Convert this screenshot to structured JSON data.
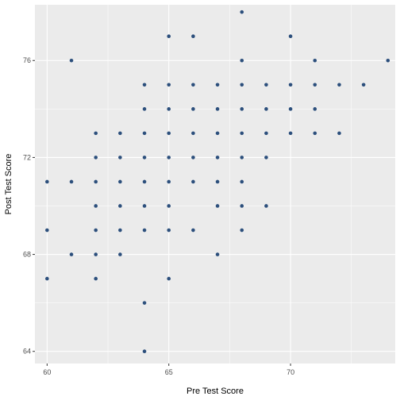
{
  "chart_data": {
    "type": "scatter",
    "title": "",
    "xlabel": "Pre Test Score",
    "ylabel": "Post Test Score",
    "xlim": [
      59.5,
      74.3
    ],
    "ylim": [
      63.5,
      78.3
    ],
    "x_ticks": [
      60,
      65,
      70
    ],
    "y_ticks": [
      64,
      68,
      72,
      76
    ],
    "x_minor": [
      62.5,
      67.5,
      72.5
    ],
    "y_minor": [
      66,
      70,
      74
    ],
    "grid": true,
    "legend": "none",
    "colors": {
      "panel": "#ebebeb",
      "grid": "#ffffff",
      "point": "#2c4f7c"
    },
    "points": [
      [
        68,
        78
      ],
      [
        65,
        77
      ],
      [
        66,
        77
      ],
      [
        70,
        77
      ],
      [
        61,
        76
      ],
      [
        68,
        76
      ],
      [
        71,
        76
      ],
      [
        74,
        76
      ],
      [
        64,
        75
      ],
      [
        65,
        75
      ],
      [
        66,
        75
      ],
      [
        67,
        75
      ],
      [
        68,
        75
      ],
      [
        69,
        75
      ],
      [
        70,
        75
      ],
      [
        71,
        75
      ],
      [
        72,
        75
      ],
      [
        73,
        75
      ],
      [
        64,
        74
      ],
      [
        65,
        74
      ],
      [
        66,
        74
      ],
      [
        67,
        74
      ],
      [
        68,
        74
      ],
      [
        69,
        74
      ],
      [
        70,
        74
      ],
      [
        71,
        74
      ],
      [
        62,
        73
      ],
      [
        63,
        73
      ],
      [
        64,
        73
      ],
      [
        65,
        73
      ],
      [
        66,
        73
      ],
      [
        67,
        73
      ],
      [
        68,
        73
      ],
      [
        69,
        73
      ],
      [
        70,
        73
      ],
      [
        71,
        73
      ],
      [
        72,
        73
      ],
      [
        62,
        72
      ],
      [
        63,
        72
      ],
      [
        64,
        72
      ],
      [
        65,
        72
      ],
      [
        66,
        72
      ],
      [
        67,
        72
      ],
      [
        68,
        72
      ],
      [
        69,
        72
      ],
      [
        60,
        71
      ],
      [
        61,
        71
      ],
      [
        62,
        71
      ],
      [
        63,
        71
      ],
      [
        64,
        71
      ],
      [
        65,
        71
      ],
      [
        66,
        71
      ],
      [
        67,
        71
      ],
      [
        68,
        71
      ],
      [
        62,
        70
      ],
      [
        63,
        70
      ],
      [
        64,
        70
      ],
      [
        65,
        70
      ],
      [
        67,
        70
      ],
      [
        68,
        70
      ],
      [
        69,
        70
      ],
      [
        60,
        69
      ],
      [
        62,
        69
      ],
      [
        63,
        69
      ],
      [
        64,
        69
      ],
      [
        65,
        69
      ],
      [
        66,
        69
      ],
      [
        68,
        69
      ],
      [
        61,
        68
      ],
      [
        62,
        68
      ],
      [
        63,
        68
      ],
      [
        67,
        68
      ],
      [
        60,
        67
      ],
      [
        62,
        67
      ],
      [
        65,
        67
      ],
      [
        64,
        66
      ],
      [
        64,
        64
      ]
    ]
  }
}
